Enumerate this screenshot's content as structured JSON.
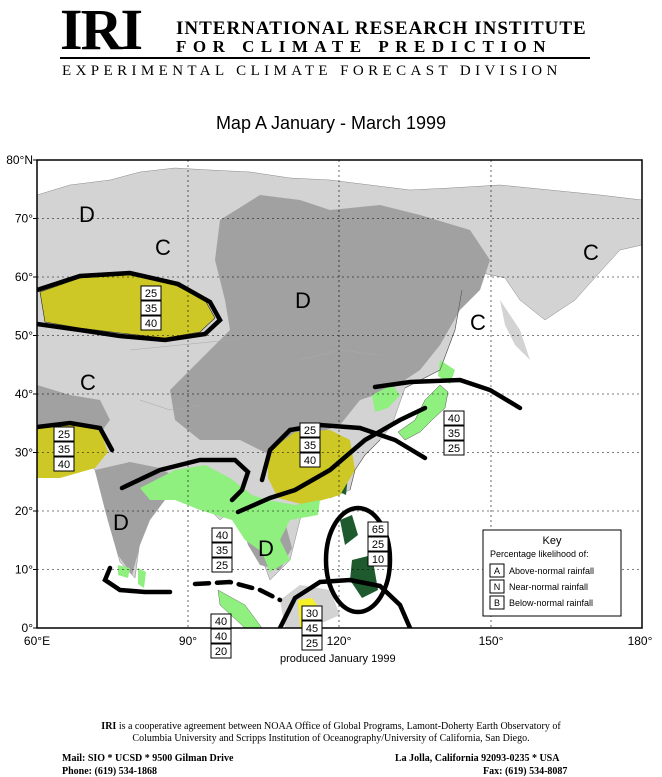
{
  "header": {
    "logo": "IRI",
    "institute_line1": "INTERNATIONAL RESEARCH INSTITUTE",
    "institute_line2": "FOR CLIMATE PREDICTION",
    "division": "EXPERIMENTAL CLIMATE FORECAST DIVISION"
  },
  "map": {
    "title": "Map A  January - March  1999",
    "produced": "produced January 1999",
    "lat_labels": [
      "80°N",
      "70°",
      "60°",
      "50°",
      "40°",
      "30°",
      "20°",
      "10°",
      "0°"
    ],
    "lon_labels": [
      "60°E",
      "90°",
      "120°",
      "150°",
      "180°"
    ],
    "region_labels": [
      "C",
      "D",
      "C",
      "C",
      "C",
      "D",
      "D",
      "D"
    ],
    "forecast_boxes": [
      {
        "values": [
          "25",
          "35",
          "40"
        ]
      },
      {
        "values": [
          "25",
          "35",
          "40"
        ]
      },
      {
        "values": [
          "25",
          "35",
          "40"
        ]
      },
      {
        "values": [
          "40",
          "35",
          "25"
        ]
      },
      {
        "values": [
          "40",
          "35",
          "25"
        ]
      },
      {
        "values": [
          "65",
          "25",
          "10"
        ]
      },
      {
        "values": [
          "40",
          "40",
          "20"
        ]
      },
      {
        "values": [
          "30",
          "45",
          "25"
        ]
      }
    ],
    "key": {
      "title": "Key",
      "subtitle": "Percentage likelihood of:",
      "rows": [
        {
          "letter": "A",
          "label": "Above-normal rainfall"
        },
        {
          "letter": "N",
          "label": "Near-normal rainfall"
        },
        {
          "letter": "B",
          "label": "Below-normal rainfall"
        }
      ]
    },
    "colors": {
      "land_gray": "#d3d3d3",
      "dry_gray": "#a1a1a1",
      "below_normal_yellow": "#cdc826",
      "above_normal_green": "#8fef7f",
      "strong_wet_green": "#1e5a2e",
      "bright_yellow": "#f6f028"
    }
  },
  "footer": {
    "line1_bold": "IRI",
    "line1": " is a cooperative agreement between NOAA Office of Global Programs, Lamont-Doherty Earth Observatory of",
    "line2": "Columbia University and Scripps Institution of Oceanography/University of California, San Diego.",
    "mail": "Mail: SIO * UCSD * 9500 Gilman Drive",
    "city": "La Jolla, California 92093-0235 * USA",
    "phone": "Phone: (619) 534-1868",
    "fax": "Fax: (619) 534-8087"
  }
}
